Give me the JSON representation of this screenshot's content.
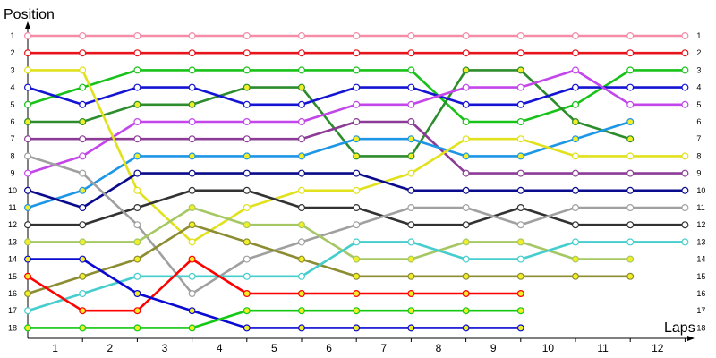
{
  "chart_data": {
    "type": "line",
    "title": "",
    "ylabel": "Position",
    "xlabel": "Laps",
    "x_ticks": [
      "1",
      "2",
      "3",
      "4",
      "5",
      "6",
      "7",
      "8",
      "9",
      "10",
      "11",
      "12"
    ],
    "y_ticks": [
      "1",
      "2",
      "3",
      "4",
      "5",
      "6",
      "7",
      "8",
      "9",
      "10",
      "11",
      "12",
      "13",
      "14",
      "15",
      "16",
      "17",
      "18"
    ],
    "ylim": [
      1,
      18
    ],
    "y_inverted": true,
    "marker": "circle",
    "grid": false,
    "legend": "none",
    "series": [
      {
        "color": "#f48ca8",
        "positions": [
          1,
          1,
          1,
          1,
          1,
          1,
          1,
          1,
          1,
          1,
          1,
          1,
          1
        ]
      },
      {
        "color": "#e8141e",
        "positions": [
          2,
          2,
          2,
          2,
          2,
          2,
          2,
          2,
          2,
          2,
          2,
          2,
          2
        ]
      },
      {
        "color": "#19c219",
        "positions": [
          5,
          4,
          3,
          3,
          3,
          3,
          3,
          3,
          6,
          6,
          5,
          3,
          3
        ]
      },
      {
        "color": "#2d8c2d",
        "positions": [
          6,
          6,
          5,
          5,
          4,
          4,
          8,
          8,
          3,
          3,
          6,
          7
        ]
      },
      {
        "color": "#1414d2",
        "positions": [
          4,
          5,
          4,
          4,
          5,
          5,
          4,
          4,
          5,
          5,
          4,
          4,
          4
        ]
      },
      {
        "color": "#c346eb",
        "positions": [
          9,
          8,
          6,
          6,
          6,
          6,
          5,
          5,
          4,
          4,
          3,
          5,
          5
        ]
      },
      {
        "color": "#8c3c96",
        "positions": [
          7,
          7,
          7,
          7,
          7,
          7,
          6,
          6,
          9,
          9,
          9,
          9,
          9
        ]
      },
      {
        "color": "#1e96e6",
        "positions": [
          11,
          10,
          8,
          8,
          8,
          8,
          7,
          7,
          8,
          8,
          7,
          6
        ]
      },
      {
        "color": "#e1e11e",
        "positions": [
          3,
          3,
          10,
          13,
          11,
          10,
          10,
          9,
          7,
          7,
          8,
          8,
          8
        ]
      },
      {
        "color": "#0a0a8c",
        "positions": [
          10,
          11,
          9,
          9,
          9,
          9,
          9,
          10,
          10,
          10,
          10,
          10,
          10
        ]
      },
      {
        "color": "#323232",
        "positions": [
          12,
          12,
          11,
          10,
          10,
          11,
          11,
          12,
          12,
          11,
          12,
          12,
          12
        ]
      },
      {
        "color": "#a0a0a0",
        "positions": [
          8,
          9,
          12,
          16,
          14,
          13,
          12,
          11,
          11,
          12,
          11,
          11,
          11
        ]
      },
      {
        "color": "#a5c864",
        "positions": [
          13,
          13,
          13,
          11,
          12,
          12,
          14,
          14,
          13,
          13,
          14,
          14
        ]
      },
      {
        "color": "#8c8c32",
        "positions": [
          16,
          15,
          14,
          12,
          13,
          14,
          15,
          15,
          15,
          15,
          15,
          15
        ]
      },
      {
        "color": "#46cdcd",
        "positions": [
          17,
          16,
          15,
          15,
          15,
          15,
          13,
          13,
          14,
          14,
          13,
          13,
          13
        ]
      },
      {
        "color": "#ff0000",
        "positions": [
          15,
          17,
          17,
          14,
          16,
          16,
          16,
          16,
          16,
          16
        ]
      },
      {
        "color": "#0a0ad2",
        "positions": [
          14,
          14,
          16,
          17,
          18,
          18,
          18,
          18,
          18,
          18
        ]
      },
      {
        "color": "#14c814",
        "positions": [
          18,
          18,
          18,
          18,
          17,
          17,
          17,
          17,
          17,
          17
        ]
      }
    ]
  }
}
